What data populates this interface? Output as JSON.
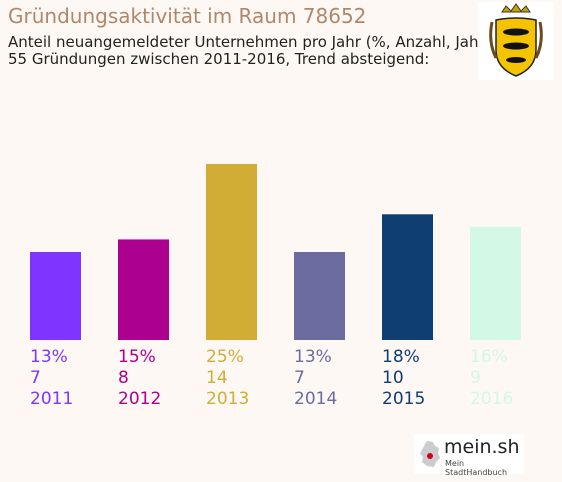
{
  "header": {
    "title": "Gründungsaktivität im Raum 78652",
    "subtitle_line1": "Anteil neuangemeldeter Unternehmen pro Jahr (%, Anzahl, Jahr)",
    "subtitle_line2": "55 Gründungen zwischen 2011-2016, Trend absteigend:"
  },
  "crest": {
    "icon": "baden-wuerttemberg-coat-of-arms-icon"
  },
  "logo": {
    "name": "mein.sh",
    "tagline": "Mein StadtHandbuch",
    "icon": "germany-map-icon"
  },
  "chart_data": {
    "type": "bar",
    "categories": [
      "2011",
      "2012",
      "2013",
      "2014",
      "2015",
      "2016"
    ],
    "values": [
      7,
      8,
      14,
      7,
      10,
      9
    ],
    "percent_labels": [
      "13%",
      "15%",
      "25%",
      "13%",
      "18%",
      "16%"
    ],
    "count_labels": [
      "7",
      "8",
      "14",
      "7",
      "10",
      "9"
    ],
    "colors": [
      "#8034ff",
      "#ac0091",
      "#d1ad35",
      "#6b6ca0",
      "#0e3e72",
      "#d3f8e6"
    ],
    "ylim": [
      0,
      14
    ],
    "grid": false,
    "legend": "none"
  }
}
